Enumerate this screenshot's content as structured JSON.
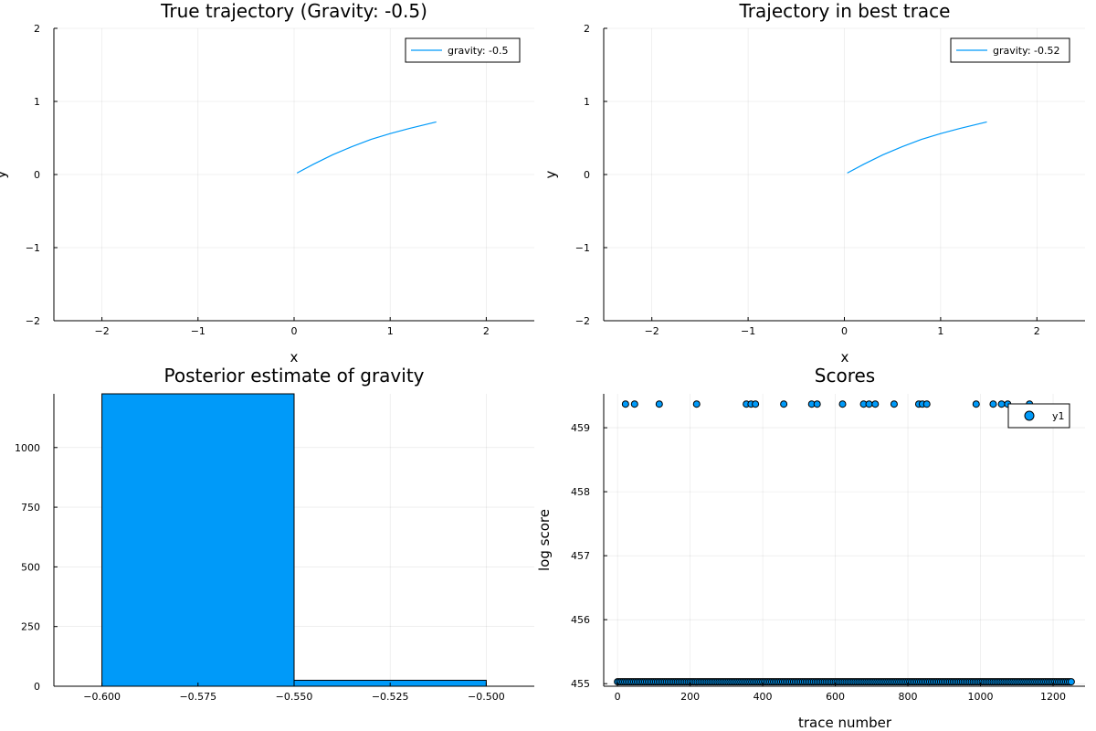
{
  "chart_data": [
    {
      "type": "line",
      "title": "True trajectory (Gravity: -0.5)",
      "xlabel": "x",
      "ylabel": "y",
      "xlim": [
        -2.5,
        2.5
      ],
      "ylim": [
        -2,
        2
      ],
      "xticks": [
        -2,
        -1,
        0,
        1,
        2
      ],
      "xtick_labels": [
        "−2",
        "−1",
        "0",
        "1",
        "2"
      ],
      "yticks": [
        -2,
        -1,
        0,
        1,
        2
      ],
      "ytick_labels": [
        "−2",
        "−1",
        "0",
        "1",
        "2"
      ],
      "grid": true,
      "legend_position": "top-right",
      "series": [
        {
          "name": "gravity: -0.5",
          "color": "#009af9",
          "x": [
            0.03,
            0.2,
            0.4,
            0.6,
            0.8,
            1.0,
            1.2,
            1.48
          ],
          "y": [
            0.02,
            0.14,
            0.27,
            0.38,
            0.48,
            0.56,
            0.63,
            0.72
          ]
        }
      ]
    },
    {
      "type": "line",
      "title": "Trajectory in best trace",
      "xlabel": "x",
      "ylabel": "y",
      "xlim": [
        -2.5,
        2.5
      ],
      "ylim": [
        -2,
        2
      ],
      "xticks": [
        -2,
        -1,
        0,
        1,
        2
      ],
      "xtick_labels": [
        "−2",
        "−1",
        "0",
        "1",
        "2"
      ],
      "yticks": [
        -2,
        -1,
        0,
        1,
        2
      ],
      "ytick_labels": [
        "−2",
        "−1",
        "0",
        "1",
        "2"
      ],
      "grid": true,
      "legend_position": "top-right",
      "series": [
        {
          "name": "gravity: -0.52",
          "color": "#009af9",
          "x": [
            0.03,
            0.2,
            0.4,
            0.6,
            0.8,
            1.0,
            1.2,
            1.48
          ],
          "y": [
            0.02,
            0.14,
            0.27,
            0.38,
            0.48,
            0.56,
            0.63,
            0.72
          ]
        }
      ]
    },
    {
      "type": "bar",
      "title": "Posterior estimate of gravity",
      "xlabel": "",
      "ylabel": "",
      "xlim": [
        -0.6125,
        -0.4875
      ],
      "ylim": [
        0,
        1225
      ],
      "xticks": [
        -0.6,
        -0.575,
        -0.55,
        -0.525,
        -0.5
      ],
      "xtick_labels": [
        "−0.600",
        "−0.575",
        "−0.550",
        "−0.525",
        "−0.500"
      ],
      "yticks": [
        0,
        250,
        500,
        750,
        1000
      ],
      "ytick_labels": [
        "0",
        "250",
        "500",
        "750",
        "1000"
      ],
      "grid": true,
      "bins": [
        {
          "start": -0.6,
          "end": -0.55,
          "value": 1225
        },
        {
          "start": -0.55,
          "end": -0.5,
          "value": 25
        }
      ],
      "color": "#009af9"
    },
    {
      "type": "scatter",
      "title": "Scores",
      "xlabel": "trace number",
      "ylabel": "log score",
      "xlim": [
        -38,
        1288
      ],
      "ylim": [
        454.96,
        459.53
      ],
      "xticks": [
        0,
        200,
        400,
        600,
        800,
        1000,
        1200
      ],
      "xtick_labels": [
        "0",
        "200",
        "400",
        "600",
        "800",
        "1000",
        "1200"
      ],
      "yticks": [
        455,
        456,
        457,
        458,
        459
      ],
      "ytick_labels": [
        "455",
        "456",
        "457",
        "458",
        "459"
      ],
      "grid": true,
      "legend_position": "top-right",
      "series": [
        {
          "name": "y1",
          "color": "#009af9",
          "high_value": 459.37,
          "low_value": 455.03,
          "high_x": [
            22,
            47,
            115,
            218,
            355,
            368,
            380,
            458,
            535,
            550,
            620,
            678,
            693,
            710,
            762,
            830,
            840,
            852,
            988,
            1035,
            1058,
            1075,
            1135
          ],
          "low_x_range": [
            0,
            1250
          ]
        }
      ]
    }
  ]
}
